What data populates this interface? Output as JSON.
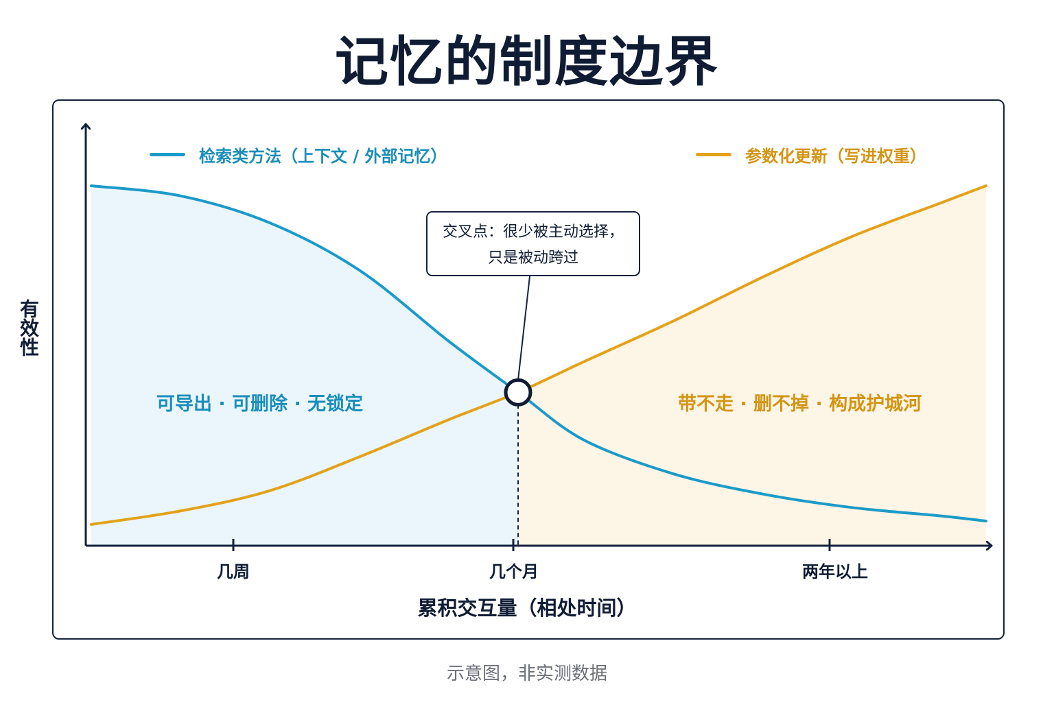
{
  "title": "记忆的制度边界",
  "caption": "示意图，非实测数据",
  "callout": {
    "line1": "交叉点：很少被主动选择，",
    "line2": "只是被动跨过"
  },
  "chart_data": {
    "type": "line",
    "title": "记忆的制度边界",
    "xlabel": "累积交互量（相处时间）",
    "ylabel": "有效性",
    "tick_labels": [
      "几周",
      "几个月",
      "两年以上"
    ],
    "xlim": [
      0,
      1
    ],
    "ylim": [
      0,
      1
    ],
    "crossover_x": 0.477,
    "legend_placement": "top",
    "grid": false,
    "region_labels": {
      "left": "可导出 · 可删除 · 无锁定",
      "right": "带不走 · 删不掉 · 构成护城河"
    },
    "series": [
      {
        "name": "检索类方法（上下文 / 外部记忆）",
        "color": "#1a9bc9",
        "x": [
          0,
          0.1,
          0.2,
          0.3,
          0.4,
          0.477,
          0.55,
          0.65,
          0.75,
          0.85,
          0.95,
          1.0
        ],
        "y": [
          1.0,
          0.97,
          0.89,
          0.75,
          0.54,
          0.39,
          0.25,
          0.15,
          0.09,
          0.05,
          0.025,
          0.01
        ]
      },
      {
        "name": "参数化更新（写进权重）",
        "color": "#e3a21a",
        "x": [
          0,
          0.1,
          0.2,
          0.3,
          0.4,
          0.477,
          0.55,
          0.65,
          0.75,
          0.85,
          0.95,
          1.0
        ],
        "y": [
          0.0,
          0.04,
          0.1,
          0.2,
          0.31,
          0.39,
          0.48,
          0.6,
          0.73,
          0.85,
          0.95,
          1.0
        ]
      }
    ]
  }
}
